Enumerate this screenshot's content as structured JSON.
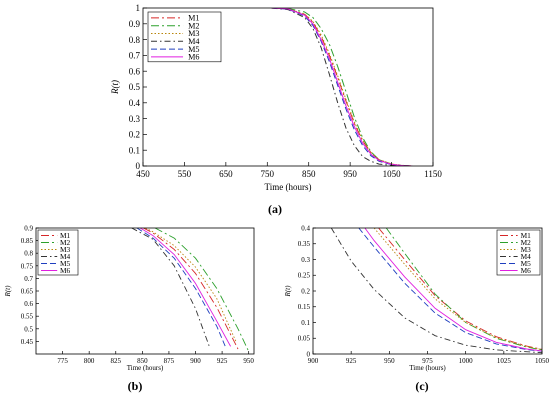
{
  "chart_data": [
    {
      "panel_label": "(a)",
      "type": "line",
      "xlabel": "Time (hours)",
      "ylabel": "R(t)",
      "xlim": [
        450,
        1150
      ],
      "ylim": [
        0,
        1
      ],
      "xticks": [
        "450",
        "550",
        "650",
        "750",
        "850",
        "950",
        "1050",
        "1150"
      ],
      "yticks": [
        "0",
        "0.1",
        "0.2",
        "0.3",
        "0.4",
        "0.5",
        "0.6",
        "0.7",
        "0.8",
        "0.9",
        "1"
      ],
      "legend": "top-left",
      "grid": false,
      "series": [
        {
          "name": "M1",
          "color": "#d62728",
          "dash": "8,3,2,3",
          "x": [
            760,
            800,
            840,
            860,
            880,
            900,
            920,
            940,
            960,
            980,
            1000,
            1020,
            1050,
            1080,
            1100
          ],
          "y": [
            1,
            0.995,
            0.96,
            0.91,
            0.82,
            0.7,
            0.56,
            0.41,
            0.27,
            0.16,
            0.085,
            0.04,
            0.012,
            0.003,
            0
          ]
        },
        {
          "name": "M2",
          "color": "#2ca02c",
          "dash": "8,3,2,3",
          "x": [
            760,
            800,
            840,
            860,
            880,
            900,
            920,
            940,
            960,
            980,
            1000,
            1020,
            1050,
            1080,
            1100
          ],
          "y": [
            1,
            0.997,
            0.975,
            0.94,
            0.87,
            0.77,
            0.63,
            0.47,
            0.31,
            0.18,
            0.09,
            0.04,
            0.011,
            0.002,
            0
          ]
        },
        {
          "name": "M3",
          "color": "#b8860b",
          "dash": "1.5,2",
          "x": [
            760,
            800,
            840,
            860,
            880,
            900,
            920,
            940,
            960,
            980,
            1000,
            1020,
            1050,
            1080,
            1100
          ],
          "y": [
            1,
            0.995,
            0.962,
            0.915,
            0.83,
            0.71,
            0.57,
            0.42,
            0.28,
            0.165,
            0.087,
            0.04,
            0.012,
            0.003,
            0
          ]
        },
        {
          "name": "M4",
          "color": "#333333",
          "dash": "6,3,1.5,3",
          "x": [
            760,
            800,
            840,
            860,
            880,
            900,
            920,
            940,
            960,
            980,
            1000,
            1020,
            1050,
            1080,
            1100
          ],
          "y": [
            1,
            0.99,
            0.94,
            0.87,
            0.75,
            0.58,
            0.4,
            0.24,
            0.13,
            0.06,
            0.03,
            0.012,
            0.004,
            0.001,
            0
          ]
        },
        {
          "name": "M5",
          "color": "#1f3fbf",
          "dash": "6,3",
          "x": [
            760,
            800,
            840,
            860,
            880,
            900,
            920,
            940,
            960,
            980,
            1000,
            1020,
            1050,
            1080,
            1100
          ],
          "y": [
            1,
            0.993,
            0.95,
            0.89,
            0.79,
            0.66,
            0.51,
            0.36,
            0.23,
            0.13,
            0.065,
            0.03,
            0.009,
            0.002,
            0
          ]
        },
        {
          "name": "M6",
          "color": "#e01fe0",
          "dash": "",
          "x": [
            760,
            800,
            840,
            860,
            880,
            900,
            920,
            940,
            960,
            980,
            1000,
            1020,
            1050,
            1080,
            1100
          ],
          "y": [
            1,
            0.994,
            0.955,
            0.9,
            0.8,
            0.68,
            0.53,
            0.38,
            0.25,
            0.145,
            0.075,
            0.035,
            0.01,
            0.002,
            0
          ]
        }
      ]
    },
    {
      "panel_label": "(b)",
      "type": "line",
      "xlabel": "Time (hours)",
      "ylabel": "R(t)",
      "xlim": [
        750,
        955
      ],
      "ylim": [
        0.4,
        0.9
      ],
      "xticks": [
        "775",
        "800",
        "825",
        "850",
        "875",
        "900",
        "925",
        "950"
      ],
      "yticks": [
        "0.45",
        "0.5",
        "0.55",
        "0.6",
        "0.65",
        "0.7",
        "0.75",
        "0.8",
        "0.85",
        "0.9"
      ],
      "legend": "top-left",
      "grid": false,
      "series": [
        {
          "name": "M1",
          "color": "#d62728",
          "dash": "8,3,2,3",
          "x": [
            851,
            860,
            880,
            900,
            920,
            940
          ],
          "y": [
            0.9,
            0.88,
            0.815,
            0.72,
            0.585,
            0.42
          ]
        },
        {
          "name": "M2",
          "color": "#2ca02c",
          "dash": "8,3,2,3",
          "x": [
            862,
            880,
            900,
            920,
            940,
            950
          ],
          "y": [
            0.9,
            0.86,
            0.78,
            0.66,
            0.5,
            0.41
          ]
        },
        {
          "name": "M3",
          "color": "#b8860b",
          "dash": "1.5,2",
          "x": [
            853,
            860,
            880,
            900,
            920,
            938
          ],
          "y": [
            0.9,
            0.885,
            0.83,
            0.745,
            0.62,
            0.45
          ]
        },
        {
          "name": "M4",
          "color": "#333333",
          "dash": "6,3,1.5,3",
          "x": [
            840,
            860,
            880,
            900,
            913
          ],
          "y": [
            0.9,
            0.855,
            0.75,
            0.58,
            0.43
          ]
        },
        {
          "name": "M5",
          "color": "#1f3fbf",
          "dash": "6,3",
          "x": [
            845,
            860,
            880,
            900,
            920,
            928
          ],
          "y": [
            0.9,
            0.86,
            0.78,
            0.66,
            0.51,
            0.43
          ]
        },
        {
          "name": "M6",
          "color": "#e01fe0",
          "dash": "",
          "x": [
            848,
            860,
            880,
            900,
            920,
            933
          ],
          "y": [
            0.9,
            0.87,
            0.795,
            0.68,
            0.53,
            0.43
          ]
        }
      ]
    },
    {
      "panel_label": "(c)",
      "type": "line",
      "xlabel": "Time (hours)",
      "ylabel": "R(t)",
      "xlim": [
        900,
        1050
      ],
      "ylim": [
        0,
        0.4
      ],
      "xticks": [
        "900",
        "925",
        "950",
        "975",
        "1000",
        "1025",
        "1050"
      ],
      "yticks": [
        "0",
        "0.05",
        "0.1",
        "0.15",
        "0.2",
        "0.25",
        "0.3",
        "0.35",
        "0.4"
      ],
      "legend": "top-right",
      "grid": false,
      "series": [
        {
          "name": "M1",
          "color": "#d62728",
          "dash": "8,3,2,3",
          "x": [
            943,
            960,
            980,
            1000,
            1020,
            1040,
            1050
          ],
          "y": [
            0.4,
            0.3,
            0.185,
            0.105,
            0.055,
            0.025,
            0.015
          ]
        },
        {
          "name": "M2",
          "color": "#2ca02c",
          "dash": "8,3,2,3",
          "x": [
            948,
            960,
            980,
            1000,
            1020,
            1040,
            1050
          ],
          "y": [
            0.4,
            0.32,
            0.19,
            0.1,
            0.05,
            0.022,
            0.013
          ]
        },
        {
          "name": "M3",
          "color": "#b8860b",
          "dash": "1.5,2",
          "x": [
            940,
            960,
            980,
            1000,
            1020,
            1040,
            1050
          ],
          "y": [
            0.4,
            0.285,
            0.175,
            0.1,
            0.052,
            0.024,
            0.014
          ]
        },
        {
          "name": "M4",
          "color": "#333333",
          "dash": "6,3,1.5,3",
          "x": [
            912,
            925,
            940,
            960,
            980,
            1000,
            1020,
            1050
          ],
          "y": [
            0.4,
            0.295,
            0.205,
            0.115,
            0.058,
            0.028,
            0.013,
            0.004
          ]
        },
        {
          "name": "M5",
          "color": "#1f3fbf",
          "dash": "6,3",
          "x": [
            930,
            940,
            960,
            980,
            1000,
            1020,
            1040,
            1050
          ],
          "y": [
            0.4,
            0.34,
            0.225,
            0.13,
            0.068,
            0.032,
            0.014,
            0.009
          ]
        },
        {
          "name": "M6",
          "color": "#e01fe0",
          "dash": "",
          "x": [
            934,
            940,
            960,
            980,
            1000,
            1020,
            1040,
            1050
          ],
          "y": [
            0.4,
            0.36,
            0.245,
            0.145,
            0.077,
            0.037,
            0.016,
            0.01
          ]
        }
      ]
    }
  ]
}
